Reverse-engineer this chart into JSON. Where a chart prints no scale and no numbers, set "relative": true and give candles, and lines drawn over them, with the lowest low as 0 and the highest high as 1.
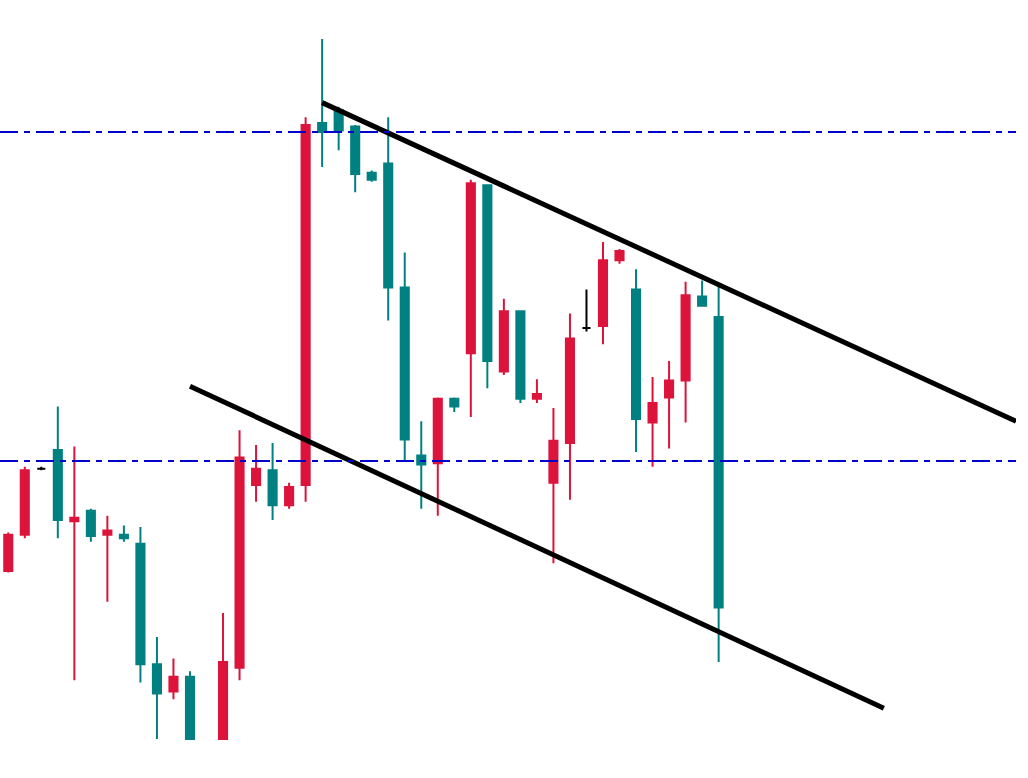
{
  "chart_data": {
    "type": "candlestick",
    "relative": true,
    "categories": [
      null,
      null,
      null,
      null,
      null,
      null,
      null,
      null,
      null,
      null,
      null,
      null,
      null,
      null,
      null,
      null,
      null,
      null,
      null,
      null,
      null,
      null,
      null,
      null,
      null,
      null,
      null,
      null,
      null,
      null,
      null,
      null,
      null,
      null,
      null,
      null,
      null,
      null,
      null,
      null,
      null,
      null,
      null,
      null,
      null,
      null,
      null,
      null,
      null,
      null,
      null,
      null,
      null,
      null,
      null,
      null,
      null,
      null,
      null,
      null,
      null,
      null
    ],
    "ohlc": [
      [
        0.24,
        0.295,
        0.238,
        0.292
      ],
      [
        0.292,
        0.389,
        0.287,
        0.384
      ],
      [
        0.386,
        0.389,
        0.384,
        0.386
      ],
      [
        0.413,
        0.475,
        0.287,
        0.313
      ],
      [
        0.311,
        0.418,
        0.084,
        0.316
      ],
      [
        0.326,
        0.329,
        0.282,
        0.29
      ],
      [
        0.292,
        0.319,
        0.196,
        0.298
      ],
      [
        0.292,
        0.305,
        0.282,
        0.287
      ],
      [
        0.279,
        0.303,
        0.081,
        0.107
      ],
      [
        0.107,
        0.146,
        0,
        0.065
      ],
      [
        0.068,
        0.115,
        0.057,
        0.089
      ],
      [
        0.089,
        0.097,
        0,
        0
      ],
      null,
      [
        0,
        0.18,
        0,
        0.11
      ],
      [
        0.102,
        0.441,
        0.084,
        0.402
      ],
      [
        0.363,
        0.42,
        0.339,
        0.386
      ],
      [
        0.384,
        0.423,
        0.313,
        0.334
      ],
      [
        0.334,
        0.366,
        0.329,
        0.36
      ],
      [
        0.363,
        0.888,
        0.339,
        0.877
      ],
      [
        0.88,
        1,
        0.817,
        0.867
      ],
      [
        0.898,
        0.903,
        0.841,
        0.869
      ],
      [
        0.875,
        0.877,
        0.781,
        0.807
      ],
      [
        0.809,
        0.812,
        0.796,
        0.799
      ],
      [
        0.822,
        0.888,
        0.598,
        0.645
      ],
      [
        0.645,
        0.695,
        0.397,
        0.428
      ],
      [
        0.405,
        0.454,
        0.329,
        0.392
      ],
      [
        0.394,
        0.488,
        0.319,
        0.486
      ],
      [
        0.486,
        0.488,
        0.467,
        0.475
      ],
      [
        0.551,
        0.799,
        0.46,
        0.794
      ],
      [
        0.791,
        0.791,
        0.501,
        0.54
      ],
      [
        0.525,
        0.629,
        0.52,
        0.611
      ],
      [
        0.611,
        0.611,
        0.48,
        0.486
      ],
      [
        0.486,
        0.514,
        0.48,
        0.493
      ],
      [
        0.366,
        0.473,
        0.251,
        0.426
      ],
      [
        0.423,
        0.608,
        0.342,
        0.572
      ],
      [
        0.587,
        0.642,
        0.582,
        0.587
      ],
      [
        0.59,
        0.71,
        0.564,
        0.684
      ],
      [
        0.684,
        0.7,
        0.679,
        0.697
      ],
      [
        0.642,
        0.671,
        0.41,
        0.457
      ],
      [
        0.452,
        0.517,
        0.389,
        0.48
      ],
      [
        0.488,
        0.54,
        0.415,
        0.512
      ],
      [
        0.512,
        0.653,
        0.452,
        0.634
      ],
      [
        0.632,
        0.655,
        0.619,
        0.619
      ],
      [
        0.603,
        0.65,
        0.11,
        0.188
      ],
      null,
      null,
      null,
      null,
      null,
      null,
      null,
      null,
      null,
      null,
      null,
      null,
      null,
      null,
      null,
      null,
      null,
      null
    ],
    "colors": [
      "#dc143c",
      "#dc143c",
      "#000000",
      "#008080",
      "#dc143c",
      "#008080",
      "#dc143c",
      "#008080",
      "#008080",
      "#008080",
      "#dc143c",
      "#008080",
      null,
      "#dc143c",
      "#dc143c",
      "#dc143c",
      "#008080",
      "#dc143c",
      "#dc143c",
      "#008080",
      "#008080",
      "#008080",
      "#008080",
      "#008080",
      "#008080",
      "#008080",
      "#dc143c",
      "#008080",
      "#dc143c",
      "#008080",
      "#dc143c",
      "#008080",
      "#dc143c",
      "#dc143c",
      "#dc143c",
      "#000000",
      "#dc143c",
      "#dc143c",
      "#008080",
      "#dc143c",
      "#dc143c",
      "#dc143c",
      "#008080",
      "#008080",
      null,
      null,
      null,
      null,
      null,
      null,
      null,
      null,
      null,
      null,
      null,
      null,
      null,
      null,
      null,
      null,
      null,
      null
    ],
    "series": [
      {
        "type": "line",
        "color": "#000000",
        "values": [
          null,
          null,
          null,
          null,
          null,
          null,
          null,
          null,
          null,
          null,
          null,
          null,
          null,
          null,
          null,
          null,
          null,
          null,
          null,
          0.909,
          null,
          null,
          null,
          null,
          null,
          null,
          null,
          null,
          null,
          null,
          null,
          null,
          null,
          null,
          null,
          null,
          null,
          null,
          null,
          null,
          null,
          null,
          null,
          null,
          null,
          null,
          null,
          null,
          null,
          null,
          null,
          null,
          null,
          null,
          null,
          null,
          null,
          null,
          null,
          null,
          null,
          0.454
        ]
      },
      {
        "type": "line",
        "color": "#000000",
        "values": [
          null,
          null,
          null,
          null,
          null,
          null,
          null,
          null,
          null,
          null,
          null,
          0.504,
          null,
          null,
          null,
          null,
          null,
          null,
          null,
          null,
          null,
          null,
          null,
          null,
          null,
          null,
          null,
          null,
          null,
          null,
          null,
          null,
          null,
          null,
          null,
          null,
          null,
          null,
          null,
          null,
          null,
          null,
          null,
          null,
          null,
          null,
          null,
          null,
          null,
          null,
          null,
          null,
          null,
          0.044,
          null,
          null,
          null,
          null,
          null,
          null,
          null,
          null
        ]
      }
    ],
    "ref_lines": [
      {
        "axis": "y",
        "value": 0.867,
        "color": "#0000cd",
        "line_style": "dashdot"
      },
      {
        "axis": "y",
        "value": 0.397,
        "color": "#0000cd",
        "line_style": "dashdot"
      }
    ],
    "tick_labels": false
  }
}
